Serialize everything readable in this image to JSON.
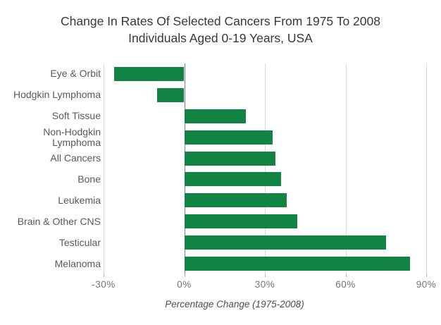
{
  "chart_data": {
    "type": "bar",
    "orientation": "horizontal",
    "title_lines": [
      "Change In Rates Of Selected Cancers From 1975 To 2008",
      "Individuals Aged 0-19 Years, USA"
    ],
    "categories": [
      "Eye & Orbit",
      "Hodgkin Lymphoma",
      "Soft Tissue",
      "Non-Hodgkin Lymphoma",
      "All Cancers",
      "Bone",
      "Leukemia",
      "Brain & Other CNS",
      "Testicular",
      "Melanoma"
    ],
    "values": [
      -26,
      -10,
      23,
      33,
      34,
      36,
      38,
      42,
      75,
      84
    ],
    "unit": "%",
    "xlabel": "Percentage Change (1975-2008)",
    "xlim": [
      -30,
      90
    ],
    "xticks": [
      -30,
      0,
      30,
      60,
      90
    ],
    "xtick_labels": [
      "-30%",
      "0%",
      "30%",
      "60%",
      "90%"
    ],
    "bar_color": "#118342",
    "grid": true,
    "legend": false
  },
  "colors": {
    "grid_line": "#d9d9d9",
    "zero_line": "#7f7f7f",
    "title_text": "#383838",
    "category_text": "#595959",
    "tick_text": "#737373",
    "background": "#ffffff"
  }
}
